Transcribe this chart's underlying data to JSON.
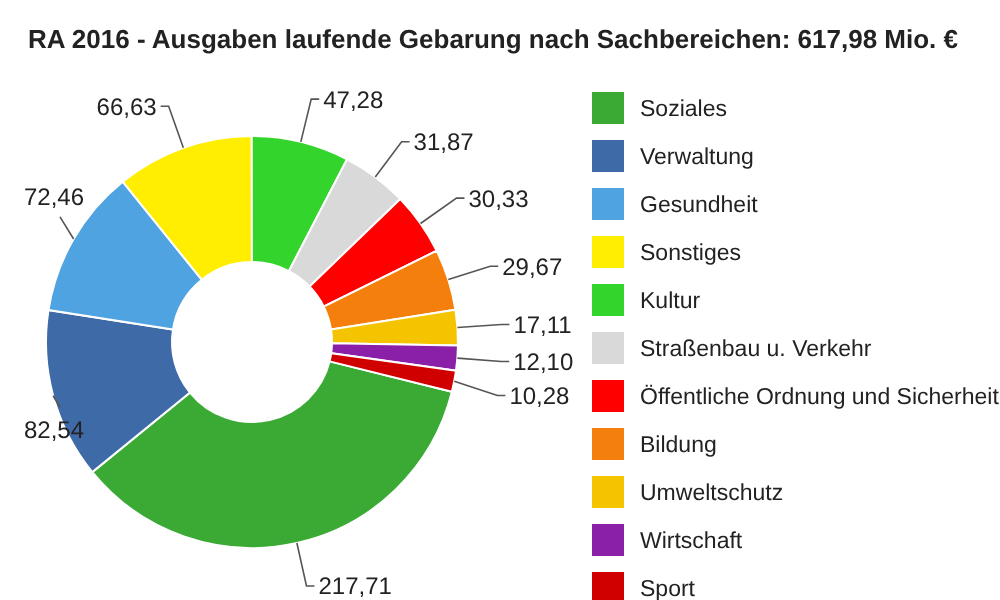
{
  "chart_data": {
    "type": "donut",
    "title": "RA 2016 - Ausgaben laufende Gebarung nach Sachbereichen:  617,98 Mio. €",
    "categories": [
      "Soziales",
      "Verwaltung",
      "Gesundheit",
      "Sonstiges",
      "Kultur",
      "Straßenbau u. Verkehr",
      "Öffentliche Ordnung und Sicherheit",
      "Bildung",
      "Umweltschutz",
      "Wirtschaft",
      "Sport"
    ],
    "values": [
      217.71,
      82.54,
      72.46,
      66.63,
      47.28,
      31.87,
      30.33,
      29.67,
      17.11,
      12.1,
      10.28
    ],
    "value_labels": [
      "217,71",
      "82,54",
      "72,46",
      "66,63",
      "47,28",
      "31,87",
      "30,33",
      "29,67",
      "17,11",
      "12,10",
      "10,28"
    ],
    "colors": [
      "#3aaa35",
      "#3f6aa8",
      "#4fa3e0",
      "#ffee00",
      "#33d42b",
      "#d9d9d9",
      "#ff0000",
      "#f57f0c",
      "#f5c400",
      "#8a1fa8",
      "#d00000"
    ],
    "legend": "right"
  }
}
